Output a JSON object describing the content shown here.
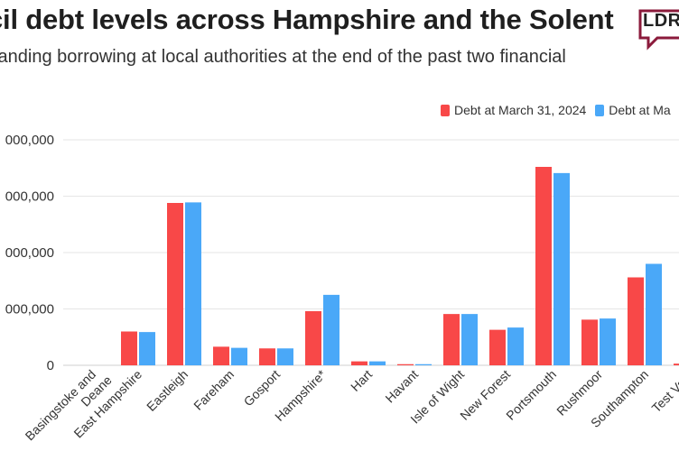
{
  "header": {
    "title": "cil debt levels across Hampshire and the Solent",
    "subtitle": "standing borrowing at local authorities at the end of the past two financial",
    "logo_text": "LDR"
  },
  "colors": {
    "series1": "#f84848",
    "series2": "#4aa8f8",
    "grid": "#e6e6e6",
    "logo_accent": "#8b1a3b"
  },
  "legend": [
    {
      "label": "Debt at March 31, 2024"
    },
    {
      "label": "Debt at Ma"
    }
  ],
  "chart_data": {
    "type": "bar",
    "title": "cil debt levels across Hampshire and the Solent",
    "subtitle": "standing borrowing at local authorities at the end of the past two financial",
    "categories": [
      "Basingstoke and Deane",
      "East Hampshire",
      "Eastleigh",
      "Fareham",
      "Gosport",
      "Hampshire*",
      "Hart",
      "Havant",
      "Isle of Wight",
      "New Forest",
      "Portsmouth",
      "Rushmoor",
      "Southampton",
      "Test Valley"
    ],
    "category_lines": [
      [
        "Basingstoke and",
        "Deane"
      ],
      [
        "East Hampshire"
      ],
      [
        "Eastleigh"
      ],
      [
        "Fareham"
      ],
      [
        "Gosport"
      ],
      [
        "Hampshire*"
      ],
      [
        "Hart"
      ],
      [
        "Havant"
      ],
      [
        "Isle of Wight"
      ],
      [
        "New Forest"
      ],
      [
        "Portsmouth"
      ],
      [
        "Rushmoor"
      ],
      [
        "Southampton"
      ],
      [
        "Test Valle"
      ]
    ],
    "series": [
      {
        "name": "Debt at March 31, 2024",
        "values": [
          0,
          0.6,
          2.88,
          0.33,
          0.3,
          0.96,
          0.07,
          0.02,
          0.91,
          0.63,
          3.52,
          0.81,
          1.56,
          0.03
        ]
      },
      {
        "name": "Debt at Ma",
        "values": [
          0,
          0.59,
          2.89,
          0.31,
          0.3,
          1.25,
          0.07,
          0.02,
          0.91,
          0.67,
          3.41,
          0.83,
          1.8,
          0
        ]
      }
    ],
    "ylim": [
      0,
      4
    ],
    "yticks": [
      0,
      1,
      2,
      3,
      4
    ],
    "ytick_labels": [
      "0",
      "000,000",
      "000,000",
      "000,000",
      "000,000"
    ],
    "xlabel": "",
    "ylabel": "",
    "legend_position": "top-right",
    "grid": true
  }
}
